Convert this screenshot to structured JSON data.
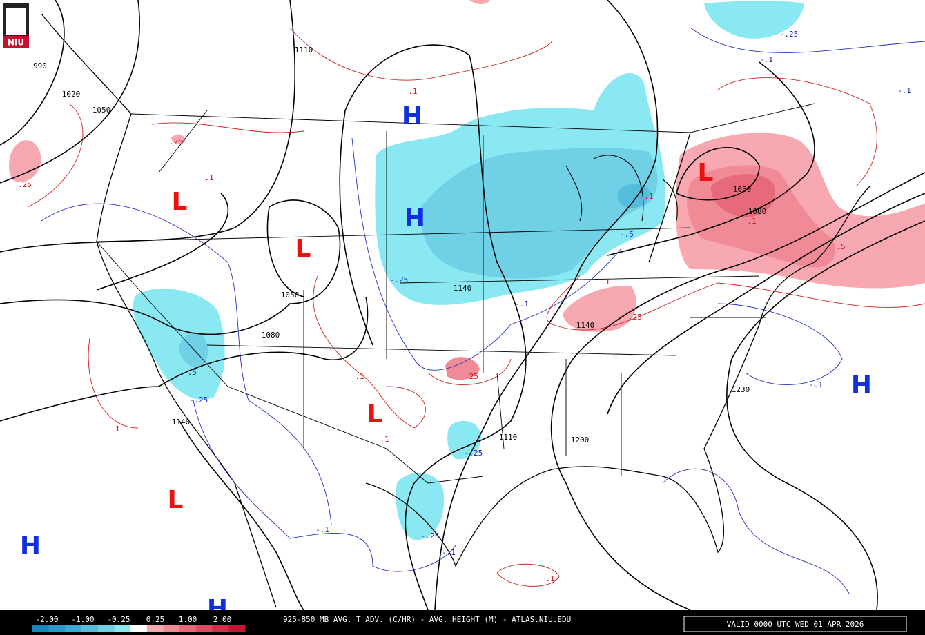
{
  "logo": "NIU",
  "title": "925-850 MB AVG. T ADV. (C/HR) - AVG. HEIGHT (M) - ATLAS.NIU.EDU",
  "valid": "VALID 0000 UTC WED 01 APR 2026",
  "legend": {
    "labels": [
      "-2.00",
      "-1.00",
      "-0.25",
      "0.25",
      "1.00",
      "2.00"
    ],
    "colors": [
      "#1a86c0",
      "#2b98c9",
      "#3eaad3",
      "#55bcdc",
      "#6fd0e6",
      "#8ae8f2",
      "#ffffff",
      "#f8a8b0",
      "#f08a96",
      "#e66a7a",
      "#dc4c60",
      "#d03048",
      "#c41830"
    ]
  },
  "heights": [
    "990",
    "1020",
    "1050",
    "1110",
    "1050",
    "1080",
    "1140",
    "1140",
    "1050",
    "1080",
    "1110",
    "1200",
    "1230",
    "1140"
  ],
  "advection": [
    ".25",
    ".1",
    ".25",
    ".1",
    "-.25",
    "-.1",
    "-.1",
    ".1",
    "-.5",
    "-.25",
    "-.1",
    ".1",
    ".25",
    ".25",
    ".1",
    ".1",
    "-.5",
    "-.25",
    ".1",
    "-.25",
    "-.1",
    "-.25",
    "-.1",
    ".1",
    "-.1",
    ".5",
    ".1"
  ],
  "centers": [
    "H",
    "H",
    "H",
    "H",
    "H",
    "L",
    "L",
    "L",
    "L",
    "L"
  ]
}
